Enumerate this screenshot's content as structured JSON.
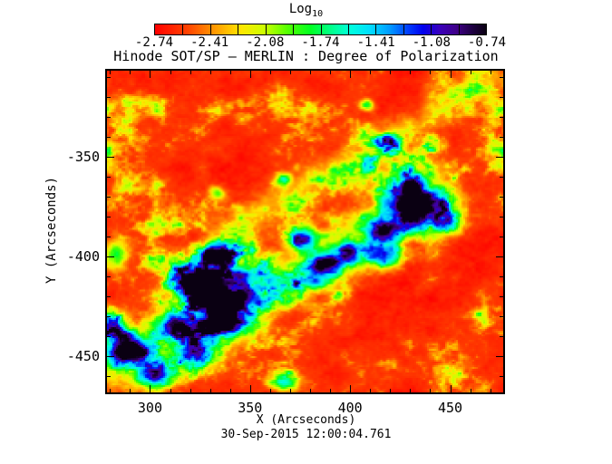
{
  "title": "Hinode SOT/SP — MERLIN : Degree of Polarization",
  "timestamp": "30-Sep-2015 12:00:04.761",
  "colorbar": {
    "label_main": "Log",
    "label_sub": "10",
    "tick_labels": [
      "-2.74",
      "-2.41",
      "-2.08",
      "-1.74",
      "-1.41",
      "-1.08",
      "-0.74"
    ]
  },
  "axes": {
    "x_label": "X (Arcseconds)",
    "y_label": "Y (Arcseconds)",
    "x_tick_labels": [
      "300",
      "350",
      "400",
      "450"
    ],
    "y_tick_labels": [
      "-350",
      "-400",
      "-450"
    ]
  },
  "chart_data": {
    "type": "heatmap",
    "title": "Hinode SOT/SP — MERLIN : Degree of Polarization",
    "xlabel": "X (Arcseconds)",
    "ylabel": "Y (Arcseconds)",
    "timestamp": "30-Sep-2015 12:00:04.761",
    "x_range": [
      278.5,
      476.5
    ],
    "y_range": [
      -468,
      -307
    ],
    "x_ticks": [
      300,
      350,
      400,
      450
    ],
    "y_ticks": [
      -350,
      -400,
      -450
    ],
    "minor_tick_step": 10,
    "major_tick_step": 50,
    "grid": false,
    "value_label": "Log10 of Degree of Polarization",
    "value_range": [
      -2.74,
      -0.74
    ],
    "colorbar_ticks": [
      -2.74,
      -2.41,
      -2.08,
      -1.74,
      -1.41,
      -1.08,
      -0.74
    ],
    "colormap": [
      [
        0.0,
        "#ff0000"
      ],
      [
        0.1,
        "#ff4400"
      ],
      [
        0.18,
        "#ff9900"
      ],
      [
        0.26,
        "#ffe600"
      ],
      [
        0.33,
        "#ccff00"
      ],
      [
        0.4,
        "#55ff00"
      ],
      [
        0.47,
        "#00ff22"
      ],
      [
        0.53,
        "#00ff88"
      ],
      [
        0.59,
        "#00ffdd"
      ],
      [
        0.65,
        "#00ddff"
      ],
      [
        0.71,
        "#0099ff"
      ],
      [
        0.76,
        "#0044ff"
      ],
      [
        0.81,
        "#0000ee"
      ],
      [
        0.86,
        "#3a00bb"
      ],
      [
        0.91,
        "#3f0088"
      ],
      [
        0.96,
        "#1d0040"
      ],
      [
        1.0,
        "#0a0012"
      ]
    ],
    "description": "Solar active-region polarization map: low-polarization red/orange granulation background with a diagonal band of enhanced polarization (green) running from lower-left to upper-right, containing dark blue/purple high-polarization sunspot cores at upper-right, centre-left and lower-left.",
    "field": {
      "noise": {
        "seed": 42,
        "octaves": [
          {
            "size": 9,
            "amp": 0.42
          },
          {
            "size": 17,
            "amp": 0.3
          },
          {
            "size": 33,
            "amp": 0.2
          },
          {
            "size": 65,
            "amp": 0.14
          },
          {
            "size": 120,
            "amp": 0.12
          }
        ]
      },
      "levels": {
        "base": 0.08,
        "pos_gain": 0.55,
        "pos_pow": 1.35,
        "neg_gain": 0.1,
        "edge_warp": 0.7,
        "struct_noise": 0.3
      },
      "bands": [
        {
          "u1": 0.0,
          "v1": 0.92,
          "u2": 0.7,
          "v2": 0.48,
          "sigma": 0.085,
          "amp": 0.22
        },
        {
          "u1": 0.3,
          "v1": 0.5,
          "u2": 0.97,
          "v2": 0.02,
          "sigma": 0.055,
          "amp": 0.12
        },
        {
          "u1": 0.55,
          "v1": 0.62,
          "u2": 0.8,
          "v2": 0.42,
          "sigma": 0.06,
          "amp": 0.15
        }
      ],
      "blobs": [
        {
          "u": 0.775,
          "v": 0.415,
          "ru": 0.075,
          "rv": 0.085,
          "amp": 0.95
        },
        {
          "u": 0.7,
          "v": 0.5,
          "ru": 0.045,
          "rv": 0.04,
          "amp": 0.6
        },
        {
          "u": 0.86,
          "v": 0.47,
          "ru": 0.032,
          "rv": 0.035,
          "amp": 0.55
        },
        {
          "u": 0.69,
          "v": 0.575,
          "ru": 0.06,
          "rv": 0.035,
          "amp": 0.6
        },
        {
          "u": 0.275,
          "v": 0.565,
          "ru": 0.035,
          "rv": 0.03,
          "amp": 0.85
        },
        {
          "u": 0.25,
          "v": 0.66,
          "ru": 0.06,
          "rv": 0.055,
          "amp": 0.9
        },
        {
          "u": 0.34,
          "v": 0.64,
          "ru": 0.04,
          "rv": 0.035,
          "amp": 0.6
        },
        {
          "u": 0.3,
          "v": 0.78,
          "ru": 0.06,
          "rv": 0.05,
          "amp": 0.9
        },
        {
          "u": 0.17,
          "v": 0.79,
          "ru": 0.045,
          "rv": 0.04,
          "amp": 0.75
        },
        {
          "u": 0.22,
          "v": 0.88,
          "ru": 0.05,
          "rv": 0.04,
          "amp": 0.7
        },
        {
          "u": 0.35,
          "v": 0.7,
          "ru": 0.035,
          "rv": 0.03,
          "amp": 0.65
        },
        {
          "u": 0.05,
          "v": 0.865,
          "ru": 0.05,
          "rv": 0.05,
          "amp": 0.9
        },
        {
          "u": 0.12,
          "v": 0.945,
          "ru": 0.05,
          "rv": 0.04,
          "amp": 0.8
        },
        {
          "u": 0.01,
          "v": 0.79,
          "ru": 0.03,
          "rv": 0.035,
          "amp": 0.65
        },
        {
          "u": 0.5,
          "v": 0.52,
          "ru": 0.03,
          "rv": 0.035,
          "amp": 0.6
        },
        {
          "u": 0.55,
          "v": 0.6,
          "ru": 0.035,
          "rv": 0.03,
          "amp": 0.65
        },
        {
          "u": 0.61,
          "v": 0.57,
          "ru": 0.03,
          "rv": 0.03,
          "amp": 0.55
        },
        {
          "u": 0.525,
          "v": 0.655,
          "ru": 0.025,
          "rv": 0.025,
          "amp": 0.5
        },
        {
          "u": 0.655,
          "v": 0.105,
          "ru": 0.02,
          "rv": 0.018,
          "amp": 0.55
        },
        {
          "u": 0.72,
          "v": 0.215,
          "ru": 0.016,
          "rv": 0.016,
          "amp": 0.45
        },
        {
          "u": 0.445,
          "v": 0.34,
          "ru": 0.018,
          "rv": 0.018,
          "amp": 0.4
        },
        {
          "u": 0.28,
          "v": 0.38,
          "ru": 0.02,
          "rv": 0.02,
          "amp": 0.35
        },
        {
          "u": 0.02,
          "v": 0.57,
          "ru": 0.03,
          "rv": 0.04,
          "amp": 0.45
        },
        {
          "u": 0.45,
          "v": 0.97,
          "ru": 0.03,
          "rv": 0.025,
          "amp": 0.55
        }
      ]
    }
  }
}
